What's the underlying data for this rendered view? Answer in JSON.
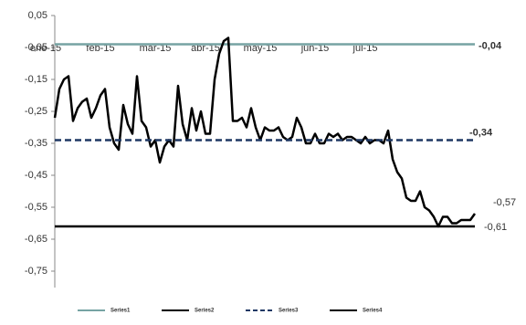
{
  "chart_data": {
    "type": "line",
    "ylim": [
      -0.75,
      0.05
    ],
    "yticks": [
      {
        "value": 0.05,
        "label": "0,05"
      },
      {
        "value": -0.05,
        "label": "-0,05"
      },
      {
        "value": -0.15,
        "label": "-0,15"
      },
      {
        "value": -0.25,
        "label": "-0,25"
      },
      {
        "value": -0.35,
        "label": "-0,35"
      },
      {
        "value": -0.45,
        "label": "-0,45"
      },
      {
        "value": -0.55,
        "label": "-0,55"
      },
      {
        "value": -0.65,
        "label": "-0,65"
      },
      {
        "value": -0.75,
        "label": "-0,75"
      }
    ],
    "xlim": [
      -3,
      92
    ],
    "xticks": [
      {
        "value": -2,
        "label": "ene-15"
      },
      {
        "value": 10,
        "label": "feb-15"
      },
      {
        "value": 22,
        "label": "mar-15"
      },
      {
        "value": 33,
        "label": "abr-15"
      },
      {
        "value": 45,
        "label": "may-15"
      },
      {
        "value": 57,
        "label": "jun-15"
      },
      {
        "value": 68,
        "label": "jul-15"
      }
    ],
    "series": [
      {
        "name": "Series1",
        "color": "#76a3a3",
        "label_color": "#5b5ea6",
        "x": [
          0,
          92
        ],
        "values": [
          -0.04,
          -0.04
        ],
        "value_labels": [
          null,
          "-0,04"
        ]
      },
      {
        "name": "Series2",
        "color": "#000000",
        "label_color": "#000000",
        "values": [
          -0.27,
          -0.18,
          -0.15,
          -0.14,
          -0.28,
          -0.24,
          -0.22,
          -0.21,
          -0.27,
          -0.24,
          -0.2,
          -0.18,
          -0.3,
          -0.35,
          -0.37,
          -0.23,
          -0.29,
          -0.32,
          -0.14,
          -0.28,
          -0.3,
          -0.36,
          -0.34,
          -0.41,
          -0.36,
          -0.34,
          -0.36,
          -0.17,
          -0.29,
          -0.34,
          -0.24,
          -0.31,
          -0.25,
          -0.32,
          -0.32,
          -0.15,
          -0.07,
          -0.03,
          -0.02,
          -0.28,
          -0.28,
          -0.27,
          -0.3,
          -0.24,
          -0.3,
          -0.34,
          -0.3,
          -0.31,
          -0.31,
          -0.3,
          -0.33,
          -0.34,
          -0.33,
          -0.27,
          -0.3,
          -0.35,
          -0.35,
          -0.32,
          -0.35,
          -0.35,
          -0.32,
          -0.33,
          -0.32,
          -0.34,
          -0.33,
          -0.33,
          -0.34,
          -0.35,
          -0.33,
          -0.35,
          -0.34,
          -0.34,
          -0.35,
          -0.31,
          -0.4,
          -0.44,
          -0.46,
          -0.52,
          -0.53,
          -0.53,
          -0.5,
          -0.55,
          -0.56,
          -0.58,
          -0.61,
          -0.58,
          -0.58,
          -0.6,
          -0.6,
          -0.59,
          -0.59,
          -0.59,
          -0.57
        ],
        "value_labels": [
          null,
          null,
          null,
          null,
          null,
          null,
          null,
          null,
          null,
          null,
          null,
          null,
          null,
          null,
          null,
          null,
          null,
          null,
          null,
          null,
          null,
          null,
          null,
          null,
          null,
          null,
          null,
          null,
          null,
          null,
          null,
          null,
          null,
          null,
          null,
          null,
          null,
          null,
          null,
          null,
          null,
          null,
          null,
          null,
          null,
          null,
          null,
          null,
          null,
          null,
          null,
          null,
          null,
          null,
          null,
          null,
          null,
          null,
          null,
          null,
          null,
          null,
          null,
          null,
          null,
          null,
          null,
          null,
          null,
          null,
          null,
          null,
          null,
          null,
          null,
          null,
          null,
          null,
          null,
          null,
          null,
          null,
          null,
          null,
          null,
          null,
          null,
          null,
          null,
          null,
          null,
          null,
          "-0,57"
        ]
      },
      {
        "name": "Series3",
        "color": "#1f3864",
        "label_color": "#3b4a8c",
        "dash": true,
        "x": [
          0,
          92
        ],
        "values": [
          -0.34,
          -0.34
        ],
        "value_labels": [
          null,
          "-0,34"
        ]
      },
      {
        "name": "Series4",
        "color": "#000000",
        "label_color": "#000000",
        "x": [
          0,
          92
        ],
        "values": [
          -0.61,
          -0.61
        ],
        "value_labels": [
          null,
          "-0,61"
        ]
      }
    ]
  }
}
